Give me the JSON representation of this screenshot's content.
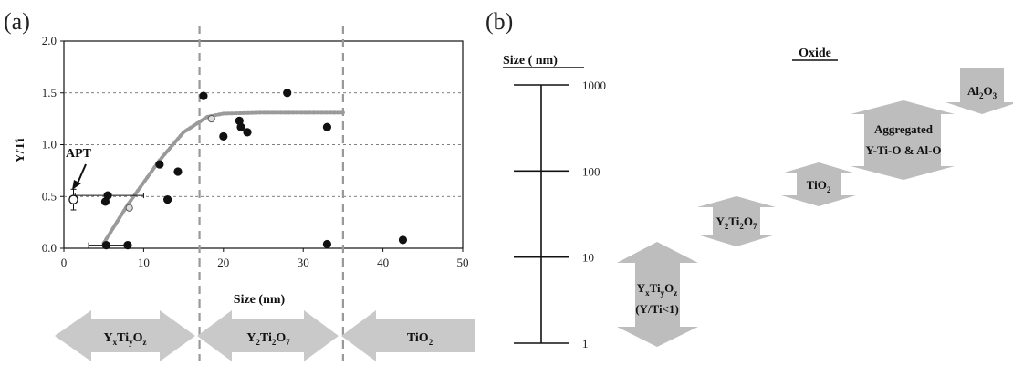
{
  "panel_a_label": "(a)",
  "panel_b_label": "(b)",
  "chart_data": [
    {
      "type": "scatter",
      "title": "",
      "xlabel": "Size (nm)",
      "ylabel": "Y/Ti",
      "xlim": [
        0,
        50
      ],
      "ylim": [
        0,
        2.0
      ],
      "xticks": [
        "0",
        "10",
        "20",
        "30",
        "40",
        "50"
      ],
      "yticks": [
        "0.0",
        "0.5",
        "1.0",
        "1.5",
        "2.0"
      ],
      "grid": "horizontal dashed",
      "series": [
        {
          "marker": "filled-circle",
          "x": [
            5.2,
            5.5,
            5.3,
            8.0,
            12,
            13,
            14.3,
            17.5,
            20,
            22,
            22.2,
            23,
            28,
            33,
            33,
            42.5
          ],
          "y": [
            0.45,
            0.51,
            0.03,
            0.03,
            0.81,
            0.47,
            0.74,
            1.47,
            1.08,
            1.23,
            1.17,
            1.12,
            1.5,
            1.17,
            0.04,
            0.08
          ]
        },
        {
          "marker": "hollow-circle",
          "x": [
            1.2
          ],
          "y": [
            0.47
          ],
          "y_err": 0.1,
          "x_err": 0.3
        }
      ],
      "xerr_bars": [
        {
          "x": 5.5,
          "y": 0.51,
          "x_left": 1.4,
          "x_right": 10
        },
        {
          "x": 5.3,
          "y": 0.03,
          "x_left": 3.1,
          "x_right": 8
        }
      ],
      "trend_curve": {
        "style": "dotted",
        "x": [
          5,
          8,
          12,
          15,
          18,
          20,
          25,
          30,
          35
        ],
        "y": [
          0.05,
          0.42,
          0.85,
          1.12,
          1.27,
          1.3,
          1.31,
          1.31,
          1.31
        ]
      },
      "vlines": [
        17,
        35
      ],
      "annotations": [
        {
          "text": "APT",
          "x": 1.2,
          "y": 0.47
        }
      ],
      "regions": [
        {
          "label_main": "Y",
          "label_sub1": "x",
          "label_mid": "Ti",
          "label_sub2": "y",
          "label_end": "O",
          "label_sub3": "z"
        },
        {
          "label_main": "Y",
          "label_sub1": "2",
          "label_mid": "Ti",
          "label_sub2": "2",
          "label_end": "O",
          "label_sub3": "7"
        },
        {
          "label_main": "TiO",
          "label_sub1": "2"
        }
      ]
    },
    {
      "type": "diagram",
      "axis_title": "Size ( nm)",
      "column_title": "Oxide",
      "scale": "log",
      "ticks": [
        "1000",
        "100",
        "10",
        "1"
      ],
      "items": [
        {
          "lines": [
            "YxTiyOz",
            "(Y/Ti<1)"
          ],
          "min": 1,
          "max": 12
        },
        {
          "lines": [
            "Y2Ti2O7"
          ],
          "min": 12,
          "max": 40
        },
        {
          "lines": [
            "TiO2"
          ],
          "min": 40,
          "max": 120
        },
        {
          "lines": [
            "Aggregated",
            "Y-Ti-O & Al-O"
          ],
          "min": 120,
          "max": 600
        },
        {
          "lines": [
            "Al2O3"
          ],
          "min": 700,
          "max": 1000
        }
      ]
    }
  ],
  "colors": {
    "marker": "#111111",
    "grid": "#555555",
    "vline": "#999999",
    "curve": "#9a9a9a",
    "arrow": "#c8c8c8"
  }
}
